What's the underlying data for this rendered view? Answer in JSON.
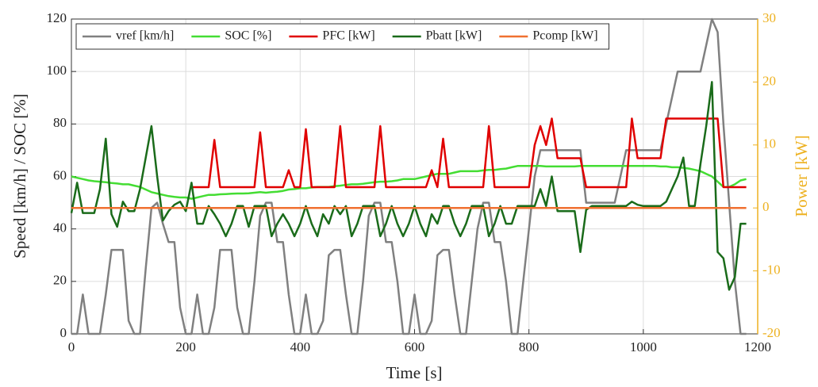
{
  "chart_data": {
    "type": "line",
    "x_label": "Time [s]",
    "y_label": "Speed [km/h] / SOC [%]",
    "y2_label": "Power [kW]",
    "x": [
      0,
      10,
      20,
      30,
      40,
      50,
      60,
      70,
      80,
      90,
      100,
      110,
      120,
      130,
      140,
      150,
      160,
      170,
      180,
      190,
      200,
      210,
      220,
      230,
      240,
      250,
      260,
      270,
      280,
      290,
      300,
      310,
      320,
      330,
      340,
      350,
      360,
      370,
      380,
      390,
      400,
      410,
      420,
      430,
      440,
      450,
      460,
      470,
      480,
      490,
      500,
      510,
      520,
      530,
      540,
      550,
      560,
      570,
      580,
      590,
      600,
      610,
      620,
      630,
      640,
      650,
      660,
      670,
      680,
      690,
      700,
      710,
      720,
      730,
      740,
      750,
      760,
      770,
      780,
      790,
      800,
      810,
      820,
      830,
      840,
      850,
      860,
      870,
      880,
      890,
      900,
      910,
      920,
      930,
      940,
      950,
      960,
      970,
      980,
      990,
      1000,
      1010,
      1020,
      1030,
      1040,
      1050,
      1060,
      1070,
      1080,
      1090,
      1100,
      1110,
      1120,
      1130,
      1140,
      1150,
      1160,
      1170,
      1180
    ],
    "series": [
      {
        "name": "vref [km/h]",
        "color": "#808080",
        "axis": "y",
        "values": [
          0,
          0,
          15,
          0,
          0,
          0,
          15,
          32,
          32,
          32,
          5,
          0,
          0,
          25,
          48,
          50,
          42,
          35,
          35,
          10,
          0,
          0,
          15,
          0,
          0,
          10,
          32,
          32,
          32,
          10,
          0,
          0,
          20,
          45,
          50,
          50,
          35,
          35,
          15,
          0,
          0,
          15,
          0,
          0,
          5,
          30,
          32,
          32,
          15,
          0,
          0,
          20,
          45,
          50,
          50,
          35,
          35,
          20,
          0,
          0,
          15,
          0,
          0,
          5,
          30,
          32,
          32,
          15,
          0,
          0,
          20,
          40,
          50,
          50,
          35,
          35,
          20,
          0,
          0,
          20,
          40,
          60,
          70,
          70,
          70,
          70,
          70,
          70,
          70,
          70,
          50,
          50,
          50,
          50,
          50,
          50,
          60,
          70,
          70,
          70,
          70,
          70,
          70,
          70,
          80,
          90,
          100,
          100,
          100,
          100,
          100,
          110,
          120,
          115,
          80,
          50,
          20,
          0,
          0
        ]
      },
      {
        "name": "SOC [%]",
        "color": "#44dd33",
        "axis": "y",
        "values": [
          60,
          59.5,
          59,
          58.5,
          58.2,
          58,
          57.8,
          57.5,
          57.3,
          57,
          57,
          56.5,
          56,
          55,
          54,
          53.5,
          53,
          52.5,
          52.2,
          52,
          52,
          51.5,
          52,
          52.5,
          53,
          53,
          53.2,
          53.3,
          53.4,
          53.5,
          53.5,
          53.6,
          53.8,
          54,
          53.8,
          54,
          54.2,
          54.5,
          55,
          55.2,
          55.5,
          55.5,
          55.8,
          56,
          56,
          56,
          56.3,
          56.5,
          56.8,
          57,
          57,
          57.2,
          57.5,
          57.8,
          58,
          58,
          58.2,
          58.5,
          59,
          59,
          59,
          59.5,
          60,
          60.5,
          61,
          61,
          61,
          61.5,
          62,
          62,
          62,
          62,
          62.3,
          62.5,
          62.5,
          62.8,
          63,
          63.5,
          64,
          64,
          64,
          64,
          64,
          63.8,
          63.8,
          63.8,
          63.8,
          63.8,
          63.8,
          64,
          64,
          64,
          64,
          64,
          64,
          64,
          64,
          64,
          64,
          64,
          64,
          64,
          64,
          63.8,
          63.8,
          63.5,
          63.5,
          63.3,
          63,
          62.5,
          62,
          61,
          60,
          58,
          56,
          56,
          57,
          58.5,
          59
        ]
      },
      {
        "name": "PFC [kW]",
        "color": "#e00000",
        "axis": "y2",
        "values": [
          null,
          null,
          null,
          null,
          null,
          null,
          null,
          null,
          null,
          null,
          null,
          null,
          null,
          null,
          null,
          null,
          null,
          null,
          null,
          null,
          null,
          3.3,
          3.3,
          3.3,
          3.3,
          10.8,
          3.3,
          3.3,
          3.3,
          3.3,
          3.3,
          3.3,
          3.3,
          12,
          3.3,
          3.3,
          3.3,
          3.3,
          6,
          3.3,
          3.3,
          12.5,
          3.3,
          3.3,
          3.3,
          3.3,
          3.3,
          13,
          3.3,
          3.3,
          3.3,
          3.3,
          3.3,
          3.3,
          13,
          3.3,
          3.3,
          3.3,
          3.3,
          3.3,
          3.3,
          3.3,
          3.3,
          6,
          3.3,
          11,
          3.3,
          3.3,
          3.3,
          3.3,
          3.3,
          3.3,
          3.3,
          13,
          3.3,
          3.3,
          3.3,
          3.3,
          3.3,
          3.3,
          3.3,
          10,
          13,
          10,
          14.2,
          7.9,
          7.9,
          7.9,
          7.9,
          7.9,
          3.3,
          3.3,
          3.3,
          3.3,
          3.3,
          3.3,
          3.3,
          3.3,
          14.2,
          7.9,
          7.9,
          7.9,
          7.9,
          7.9,
          14.2,
          14.2,
          14.2,
          14.2,
          14.2,
          14.2,
          14.2,
          14.2,
          14.2,
          14.2,
          3.3,
          3.3,
          3.3,
          3.3,
          3.3
        ]
      },
      {
        "name": "Pbatt [kW]",
        "color": "#1a6b1a",
        "axis": "y2",
        "values": [
          -0.8,
          4,
          -0.8,
          -0.8,
          -0.8,
          3,
          11,
          -1,
          -3,
          1,
          -0.5,
          -0.5,
          3,
          8,
          13,
          5,
          -2,
          -0.5,
          0.5,
          1,
          -0.5,
          4,
          -2.5,
          -2.5,
          0.3,
          -1,
          -2.5,
          -4.5,
          -2.5,
          0.3,
          0.3,
          -3,
          0.3,
          0.3,
          0.3,
          -4.5,
          -2.5,
          -1,
          -2.5,
          -4.5,
          -2.5,
          0.3,
          -2.5,
          -4.5,
          -1,
          -2.5,
          0.3,
          -1,
          0.3,
          -4.5,
          -2.5,
          0.3,
          0.3,
          0.3,
          -4.5,
          -2.5,
          0.3,
          -2.5,
          -4.5,
          -2.5,
          0.3,
          -2.5,
          -4.5,
          -1,
          -2.5,
          0.3,
          0.3,
          -2.5,
          -4.5,
          -2.5,
          0.3,
          0.3,
          0.3,
          -4.5,
          -2.5,
          0.3,
          -2.5,
          -2.5,
          0.3,
          0.3,
          0.3,
          0.3,
          3,
          0.3,
          5,
          -0.5,
          -0.5,
          -0.5,
          -0.5,
          -7,
          -0.3,
          0.3,
          0.3,
          0.3,
          0.3,
          0.3,
          0.3,
          0.3,
          1,
          0.5,
          0.3,
          0.3,
          0.3,
          0.3,
          1,
          3,
          5,
          8,
          0.3,
          0.3,
          7,
          13,
          20,
          -7,
          -8,
          -13,
          -11,
          -2.5,
          -2.5
        ]
      },
      {
        "name": "Pcomp [kW]",
        "color": "#f07030",
        "axis": "y2",
        "values": [
          0,
          0,
          0,
          0,
          0,
          0,
          0,
          0,
          0,
          0,
          0,
          0,
          0,
          0,
          0,
          0,
          0,
          0,
          0,
          0,
          0,
          0,
          0,
          0,
          0,
          0,
          0,
          0,
          0,
          0,
          0,
          0,
          0,
          0,
          0,
          0,
          0,
          0,
          0,
          0,
          0,
          0,
          0,
          0,
          0,
          0,
          0,
          0,
          0,
          0,
          0,
          0,
          0,
          0,
          0,
          0,
          0,
          0,
          0,
          0,
          0,
          0,
          0,
          0,
          0,
          0,
          0,
          0,
          0,
          0,
          0,
          0,
          0,
          0,
          0,
          0,
          0,
          0,
          0,
          0,
          0,
          0,
          0,
          0,
          0,
          0,
          0,
          0,
          0,
          0,
          0,
          0,
          0,
          0,
          0,
          0,
          0,
          0,
          0,
          0,
          0,
          0,
          0,
          0,
          0,
          0,
          0,
          0,
          0,
          0,
          0,
          0,
          0,
          0,
          0,
          0,
          0,
          0,
          0
        ]
      }
    ],
    "xlim": [
      0,
      1200
    ],
    "xticks": [
      0,
      200,
      400,
      600,
      800,
      1000,
      1200
    ],
    "ylim": [
      0,
      120
    ],
    "yticks": [
      0,
      20,
      40,
      60,
      80,
      100,
      120
    ],
    "y2lim": [
      -20,
      30
    ],
    "y2ticks": [
      -20,
      -10,
      0,
      10,
      20,
      30
    ],
    "y2_color": "#EDB120",
    "grid": true,
    "legend": "top"
  }
}
